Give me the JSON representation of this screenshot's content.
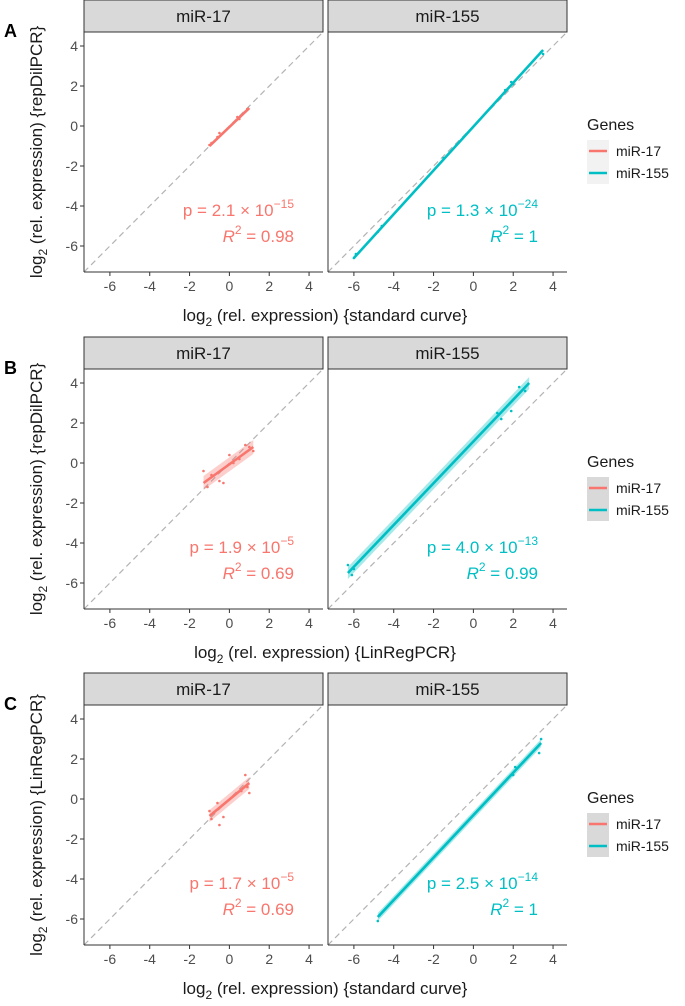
{
  "chart_data": [
    {
      "type": "scatter",
      "panel_label": "A",
      "ylabel": "log2 (rel. expression) {repDilPCR}",
      "xlabel": "log2 (rel. expression) {standard curve}",
      "xlim": [
        -7.3,
        4.7
      ],
      "ylim": [
        -7.3,
        4.7
      ],
      "ticks": [
        -6,
        -4,
        -2,
        0,
        2,
        4
      ],
      "tick_labels": [
        "-6",
        "-4",
        "-2",
        "0",
        "2",
        "4"
      ],
      "ribbon": false,
      "facets": [
        {
          "name": "miR-17",
          "fit": {
            "x": [
              -1.0,
              1.0
            ],
            "y": [
              -1.0,
              0.9
            ],
            "se": 0.06
          },
          "points": {
            "x": [
              -1.0,
              -0.9,
              -0.6,
              -0.5,
              0.4,
              0.5,
              0.9
            ],
            "y": [
              -0.95,
              -0.85,
              -0.55,
              -0.35,
              0.45,
              0.35,
              0.85
            ]
          },
          "stat": {
            "p_mant": "2.1",
            "p_exp": "−15",
            "r2": "0.98"
          }
        },
        {
          "name": "miR-155",
          "fit": {
            "x": [
              -6.0,
              3.5
            ],
            "y": [
              -6.6,
              3.8
            ],
            "se": 0.08
          },
          "points": {
            "x": [
              -6.0,
              -5.9,
              -4.8,
              -4.6,
              -1.5,
              1.6,
              1.9,
              2.0,
              3.4,
              3.5
            ],
            "y": [
              -6.6,
              -6.4,
              -5.3,
              -5.0,
              -1.6,
              1.8,
              2.2,
              2.1,
              3.7,
              3.6
            ]
          },
          "stat": {
            "p_mant": "1.3",
            "p_exp": "−24",
            "r2": "1"
          }
        }
      ]
    },
    {
      "type": "scatter",
      "panel_label": "B",
      "ylabel": "log2 (rel. expression) {repDilPCR}",
      "xlabel": "log2 (rel. expression) {LinRegPCR}",
      "xlim": [
        -7.3,
        4.7
      ],
      "ylim": [
        -7.3,
        4.7
      ],
      "ticks": [
        -6,
        -4,
        -2,
        0,
        2,
        4
      ],
      "tick_labels": [
        "-6",
        "-4",
        "-2",
        "0",
        "2",
        "4"
      ],
      "ribbon": true,
      "facets": [
        {
          "name": "miR-17",
          "fit": {
            "x": [
              -1.3,
              1.2
            ],
            "y": [
              -1.0,
              0.8
            ],
            "se": 0.35
          },
          "points": {
            "x": [
              -1.3,
              -1.1,
              -0.9,
              -0.5,
              -0.3,
              0.0,
              0.2,
              0.5,
              0.8,
              1.0,
              1.2
            ],
            "y": [
              -0.4,
              -1.2,
              -0.6,
              -0.9,
              -1.0,
              0.4,
              0.0,
              0.2,
              0.9,
              0.8,
              0.6
            ]
          },
          "stat": {
            "p_mant": "1.9",
            "p_exp": "−5",
            "r2": "0.69"
          }
        },
        {
          "name": "miR-155",
          "fit": {
            "x": [
              -6.3,
              2.8
            ],
            "y": [
              -5.5,
              4.0
            ],
            "se": 0.3
          },
          "points": {
            "x": [
              -6.3,
              -6.1,
              -6.0,
              1.2,
              1.4,
              1.9,
              2.3,
              2.6
            ],
            "y": [
              -5.1,
              -5.6,
              -5.3,
              2.5,
              2.2,
              2.6,
              3.8,
              3.6
            ]
          },
          "stat": {
            "p_mant": "4.0",
            "p_exp": "−13",
            "r2": "0.99"
          }
        }
      ]
    },
    {
      "type": "scatter",
      "panel_label": "C",
      "ylabel": "log2 (rel. expression) {LinRegPCR}",
      "xlabel": "log2 (rel. expression) {standard curve}",
      "xlim": [
        -7.3,
        4.7
      ],
      "ylim": [
        -7.3,
        4.7
      ],
      "ticks": [
        -6,
        -4,
        -2,
        0,
        2,
        4
      ],
      "tick_labels": [
        "-6",
        "-4",
        "-2",
        "0",
        "2",
        "4"
      ],
      "ribbon": true,
      "facets": [
        {
          "name": "miR-17",
          "fit": {
            "x": [
              -1.0,
              1.0
            ],
            "y": [
              -0.85,
              0.8
            ],
            "se": 0.3
          },
          "points": {
            "x": [
              -1.0,
              -0.9,
              -0.6,
              -0.5,
              -0.3,
              0.6,
              0.8,
              0.9,
              1.0
            ],
            "y": [
              -0.6,
              -1.0,
              -0.2,
              -1.3,
              -0.9,
              0.4,
              1.2,
              0.6,
              0.3
            ]
          },
          "stat": {
            "p_mant": "1.7",
            "p_exp": "−5",
            "r2": "0.69"
          }
        },
        {
          "name": "miR-155",
          "fit": {
            "x": [
              -4.8,
              3.4
            ],
            "y": [
              -5.9,
              2.8
            ],
            "se": 0.2
          },
          "points": {
            "x": [
              -4.8,
              -4.7,
              2.0,
              2.1,
              3.3,
              3.4
            ],
            "y": [
              -6.1,
              -5.8,
              1.2,
              1.6,
              2.3,
              3.0
            ]
          },
          "stat": {
            "p_mant": "2.5",
            "p_exp": "−14",
            "r2": "1"
          }
        }
      ]
    }
  ],
  "legend": {
    "title": "Genes",
    "entries": [
      {
        "name": "miR-17",
        "color": "#F8766D"
      },
      {
        "name": "miR-155",
        "color": "#00BFC4"
      }
    ]
  },
  "colors": {
    "mir17": "#F8766D",
    "mir155": "#00BFC4",
    "strip_bg": "#d9d9d9",
    "identity": "#b3b3b3"
  }
}
